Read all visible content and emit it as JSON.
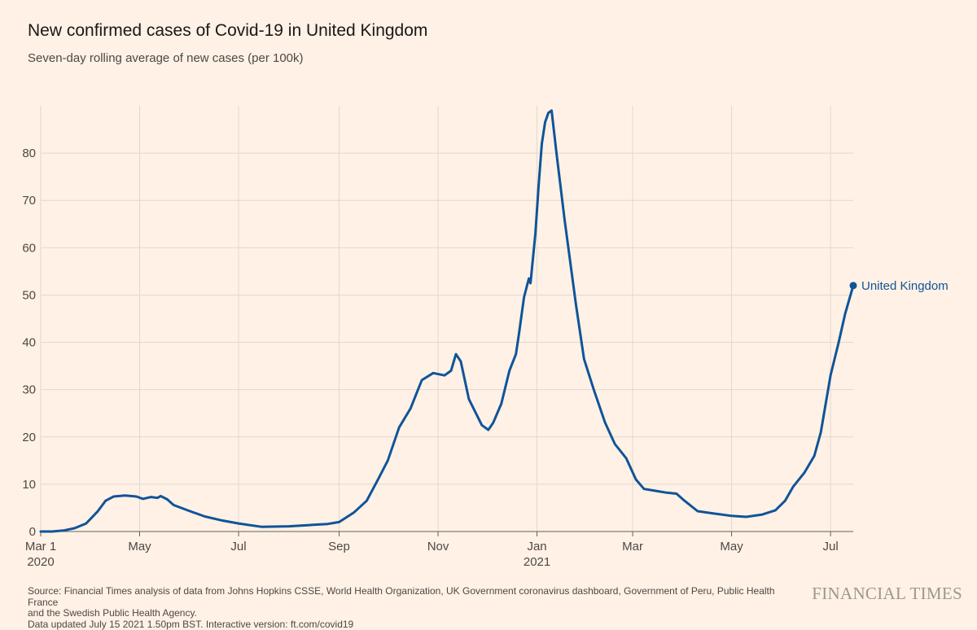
{
  "header": {
    "title": "New confirmed cases of Covid-19 in United Kingdom",
    "subtitle": "Seven-day rolling average of new cases (per 100k)"
  },
  "footer": {
    "source_line1": "Source: Financial Times analysis of data from Johns Hopkins CSSE, World Health Organization, UK Government coronavirus dashboard, Government of Peru, Public Health France",
    "source_line2": "and the Swedish Public Health Agency.",
    "source_line3": "Data updated July 15 2021 1.50pm BST. Interactive version: ft.com/covid19",
    "brand": "FINANCIAL TIMES"
  },
  "chart_data": {
    "type": "line",
    "title": "New confirmed cases of Covid-19 in United Kingdom",
    "subtitle": "Seven-day rolling average of new cases (per 100k)",
    "xlabel": "",
    "ylabel": "",
    "x_range": [
      "2020-03-01",
      "2021-07-15"
    ],
    "ylim": [
      0,
      90
    ],
    "y_ticks": [
      0,
      10,
      20,
      30,
      40,
      50,
      60,
      70,
      80
    ],
    "x_ticks": [
      {
        "date": "2020-03-01",
        "label": "Mar 1",
        "sublabel": "2020"
      },
      {
        "date": "2020-05-01",
        "label": "May",
        "sublabel": ""
      },
      {
        "date": "2020-07-01",
        "label": "Jul",
        "sublabel": ""
      },
      {
        "date": "2020-09-01",
        "label": "Sep",
        "sublabel": ""
      },
      {
        "date": "2020-11-01",
        "label": "Nov",
        "sublabel": ""
      },
      {
        "date": "2021-01-01",
        "label": "Jan",
        "sublabel": "2021"
      },
      {
        "date": "2021-03-01",
        "label": "Mar",
        "sublabel": ""
      },
      {
        "date": "2021-05-01",
        "label": "May",
        "sublabel": ""
      },
      {
        "date": "2021-07-01",
        "label": "Jul",
        "sublabel": ""
      }
    ],
    "grid": true,
    "colors": {
      "series": "#0f5499",
      "grid": "#e2d8d0",
      "axis": "#66605c"
    },
    "series": [
      {
        "name": "United Kingdom",
        "points": [
          [
            "2020-03-01",
            0.0
          ],
          [
            "2020-03-08",
            0.0
          ],
          [
            "2020-03-15",
            0.2
          ],
          [
            "2020-03-22",
            0.7
          ],
          [
            "2020-03-29",
            1.7
          ],
          [
            "2020-04-05",
            4.2
          ],
          [
            "2020-04-10",
            6.5
          ],
          [
            "2020-04-15",
            7.4
          ],
          [
            "2020-04-22",
            7.6
          ],
          [
            "2020-04-29",
            7.4
          ],
          [
            "2020-05-03",
            6.9
          ],
          [
            "2020-05-08",
            7.3
          ],
          [
            "2020-05-12",
            7.1
          ],
          [
            "2020-05-14",
            7.5
          ],
          [
            "2020-05-18",
            6.8
          ],
          [
            "2020-05-22",
            5.6
          ],
          [
            "2020-06-01",
            4.3
          ],
          [
            "2020-06-10",
            3.2
          ],
          [
            "2020-06-20",
            2.4
          ],
          [
            "2020-07-01",
            1.7
          ],
          [
            "2020-07-15",
            1.0
          ],
          [
            "2020-08-01",
            1.1
          ],
          [
            "2020-08-15",
            1.4
          ],
          [
            "2020-08-25",
            1.6
          ],
          [
            "2020-09-01",
            2.0
          ],
          [
            "2020-09-10",
            4.0
          ],
          [
            "2020-09-18",
            6.5
          ],
          [
            "2020-09-25",
            11.0
          ],
          [
            "2020-10-01",
            15.0
          ],
          [
            "2020-10-08",
            22.0
          ],
          [
            "2020-10-15",
            26.0
          ],
          [
            "2020-10-22",
            32.0
          ],
          [
            "2020-10-29",
            33.5
          ],
          [
            "2020-11-05",
            33.0
          ],
          [
            "2020-11-09",
            34.0
          ],
          [
            "2020-11-12",
            37.5
          ],
          [
            "2020-11-15",
            36.0
          ],
          [
            "2020-11-20",
            28.0
          ],
          [
            "2020-11-28",
            22.5
          ],
          [
            "2020-12-02",
            21.5
          ],
          [
            "2020-12-05",
            23.0
          ],
          [
            "2020-12-10",
            27.0
          ],
          [
            "2020-12-15",
            34.0
          ],
          [
            "2020-12-19",
            37.5
          ],
          [
            "2020-12-21",
            42.0
          ],
          [
            "2020-12-24",
            49.5
          ],
          [
            "2020-12-27",
            53.5
          ],
          [
            "2020-12-28",
            52.5
          ],
          [
            "2020-12-31",
            63.0
          ],
          [
            "2021-01-02",
            73.0
          ],
          [
            "2021-01-04",
            82.0
          ],
          [
            "2021-01-06",
            86.5
          ],
          [
            "2021-01-08",
            88.5
          ],
          [
            "2021-01-10",
            89.0
          ],
          [
            "2021-01-13",
            80.0
          ],
          [
            "2021-01-18",
            66.0
          ],
          [
            "2021-01-25",
            48.0
          ],
          [
            "2021-01-30",
            36.5
          ],
          [
            "2021-02-05",
            30.0
          ],
          [
            "2021-02-12",
            23.0
          ],
          [
            "2021-02-18",
            18.5
          ],
          [
            "2021-02-25",
            15.5
          ],
          [
            "2021-03-03",
            11.0
          ],
          [
            "2021-03-08",
            9.0
          ],
          [
            "2021-03-15",
            8.6
          ],
          [
            "2021-03-22",
            8.2
          ],
          [
            "2021-03-28",
            8.0
          ],
          [
            "2021-04-02",
            6.5
          ],
          [
            "2021-04-10",
            4.3
          ],
          [
            "2021-04-20",
            3.8
          ],
          [
            "2021-05-01",
            3.3
          ],
          [
            "2021-05-10",
            3.1
          ],
          [
            "2021-05-20",
            3.6
          ],
          [
            "2021-05-28",
            4.5
          ],
          [
            "2021-06-03",
            6.5
          ],
          [
            "2021-06-08",
            9.5
          ],
          [
            "2021-06-15",
            12.5
          ],
          [
            "2021-06-21",
            16.0
          ],
          [
            "2021-06-25",
            21.0
          ],
          [
            "2021-07-01",
            33.0
          ],
          [
            "2021-07-06",
            40.0
          ],
          [
            "2021-07-10",
            46.0
          ],
          [
            "2021-07-15",
            52.0
          ]
        ]
      }
    ]
  }
}
